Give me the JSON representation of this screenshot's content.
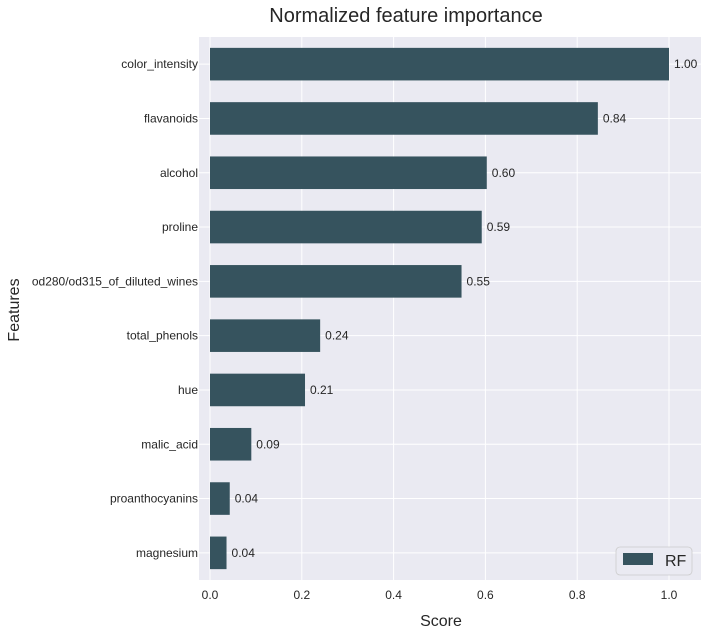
{
  "chart_data": {
    "type": "bar",
    "orientation": "horizontal",
    "title": "Normalized feature importance",
    "xlabel": "Score",
    "ylabel": "Features",
    "xlim": [
      0,
      1.07
    ],
    "xticks": [
      "0.0",
      "0.2",
      "0.4",
      "0.6",
      "0.8",
      "1.0"
    ],
    "categories": [
      "color_intensity",
      "flavanoids",
      "alcohol",
      "proline",
      "od280/od315_of_diluted_wines",
      "total_phenols",
      "hue",
      "malic_acid",
      "proanthocyanins",
      "magnesium"
    ],
    "series": [
      {
        "name": "RF",
        "values": [
          1.0,
          0.845,
          0.603,
          0.592,
          0.548,
          0.24,
          0.207,
          0.09,
          0.043,
          0.036
        ],
        "labels": [
          "1.00",
          "0.84",
          "0.60",
          "0.59",
          "0.55",
          "0.24",
          "0.21",
          "0.09",
          "0.04",
          "0.04"
        ]
      }
    ],
    "bar_color": "#36535e",
    "background_color": "#eaeaf2",
    "grid": true,
    "legend_position": "bottom-right"
  }
}
